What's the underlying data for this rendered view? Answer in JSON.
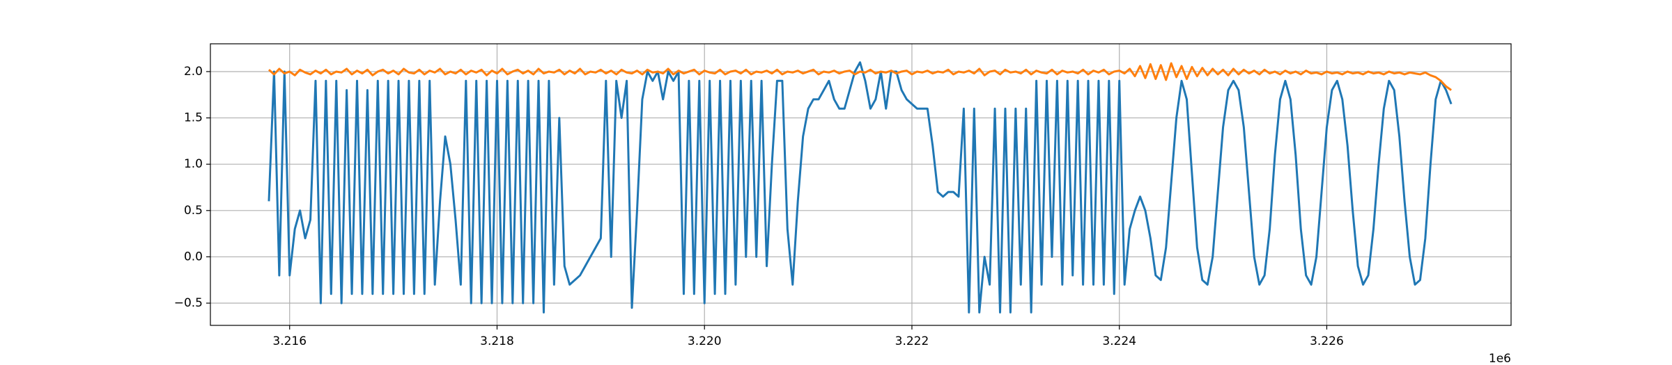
{
  "chart_data": {
    "type": "line",
    "x": [
      3215800,
      3215850,
      3215900,
      3215950,
      3216000,
      3216050,
      3216100,
      3216150,
      3216200,
      3216250,
      3216300,
      3216350,
      3216400,
      3216450,
      3216500,
      3216550,
      3216600,
      3216650,
      3216700,
      3216750,
      3216800,
      3216850,
      3216900,
      3216950,
      3217000,
      3217050,
      3217100,
      3217150,
      3217200,
      3217250,
      3217300,
      3217350,
      3217400,
      3217450,
      3217500,
      3217550,
      3217600,
      3217650,
      3217700,
      3217750,
      3217800,
      3217850,
      3217900,
      3217950,
      3218000,
      3218050,
      3218100,
      3218150,
      3218200,
      3218250,
      3218300,
      3218350,
      3218400,
      3218450,
      3218500,
      3218550,
      3218600,
      3218650,
      3218700,
      3218750,
      3218800,
      3218850,
      3218900,
      3218950,
      3219000,
      3219050,
      3219100,
      3219150,
      3219200,
      3219250,
      3219300,
      3219350,
      3219400,
      3219450,
      3219500,
      3219550,
      3219600,
      3219650,
      3219700,
      3219750,
      3219800,
      3219850,
      3219900,
      3219950,
      3220000,
      3220050,
      3220100,
      3220150,
      3220200,
      3220250,
      3220300,
      3220350,
      3220400,
      3220450,
      3220500,
      3220550,
      3220600,
      3220650,
      3220700,
      3220750,
      3220800,
      3220850,
      3220900,
      3220950,
      3221000,
      3221050,
      3221100,
      3221150,
      3221200,
      3221250,
      3221300,
      3221350,
      3221400,
      3221450,
      3221500,
      3221550,
      3221600,
      3221650,
      3221700,
      3221750,
      3221800,
      3221850,
      3221900,
      3221950,
      3222000,
      3222050,
      3222100,
      3222150,
      3222200,
      3222250,
      3222300,
      3222350,
      3222400,
      3222450,
      3222500,
      3222550,
      3222600,
      3222650,
      3222700,
      3222750,
      3222800,
      3222850,
      3222900,
      3222950,
      3223000,
      3223050,
      3223100,
      3223150,
      3223200,
      3223250,
      3223300,
      3223350,
      3223400,
      3223450,
      3223500,
      3223550,
      3223600,
      3223650,
      3223700,
      3223750,
      3223800,
      3223850,
      3223900,
      3223950,
      3224000,
      3224050,
      3224100,
      3224150,
      3224200,
      3224250,
      3224300,
      3224350,
      3224400,
      3224450,
      3224500,
      3224550,
      3224600,
      3224650,
      3224700,
      3224750,
      3224800,
      3224850,
      3224900,
      3224950,
      3225000,
      3225050,
      3225100,
      3225150,
      3225200,
      3225250,
      3225300,
      3225350,
      3225400,
      3225450,
      3225500,
      3225550,
      3225600,
      3225650,
      3225700,
      3225750,
      3225800,
      3225850,
      3225900,
      3225950,
      3226000,
      3226050,
      3226100,
      3226150,
      3226200,
      3226250,
      3226300,
      3226350,
      3226400,
      3226450,
      3226500,
      3226550,
      3226600,
      3226650,
      3226700,
      3226750,
      3226800,
      3226850,
      3226900,
      3226950,
      3227000,
      3227050,
      3227100,
      3227150,
      3227200
    ],
    "series": [
      {
        "color": "#1f77b4",
        "values": [
          0.6,
          2.0,
          -0.2,
          2.0,
          -0.2,
          0.3,
          0.5,
          0.2,
          0.4,
          1.9,
          -0.5,
          1.9,
          -0.4,
          1.9,
          -0.5,
          1.8,
          -0.4,
          1.9,
          -0.4,
          1.8,
          -0.4,
          1.9,
          -0.4,
          1.9,
          -0.4,
          1.9,
          -0.4,
          1.9,
          -0.4,
          1.9,
          -0.4,
          1.9,
          -0.3,
          0.6,
          1.3,
          1.0,
          0.4,
          -0.3,
          1.9,
          -0.5,
          1.9,
          -0.5,
          1.9,
          -0.5,
          1.9,
          -0.5,
          1.9,
          -0.5,
          1.9,
          -0.5,
          1.9,
          -0.5,
          1.9,
          -0.6,
          1.9,
          -0.3,
          1.5,
          -0.1,
          -0.3,
          -0.25,
          -0.2,
          -0.1,
          0.0,
          0.1,
          0.2,
          1.9,
          0.0,
          1.9,
          1.5,
          1.9,
          -0.55,
          0.5,
          1.7,
          2.0,
          1.9,
          2.0,
          1.7,
          2.0,
          1.9,
          2.0,
          -0.4,
          1.9,
          -0.4,
          1.9,
          -0.5,
          1.9,
          -0.4,
          1.9,
          -0.4,
          1.9,
          -0.3,
          1.9,
          0.0,
          1.9,
          0.0,
          1.9,
          -0.1,
          1.0,
          1.9,
          1.9,
          0.3,
          -0.3,
          0.6,
          1.3,
          1.6,
          1.7,
          1.7,
          1.8,
          1.9,
          1.7,
          1.6,
          1.6,
          1.8,
          2.0,
          2.1,
          1.9,
          1.6,
          1.7,
          2.0,
          1.6,
          2.0,
          2.0,
          1.8,
          1.7,
          1.65,
          1.6,
          1.6,
          1.6,
          1.2,
          0.7,
          0.65,
          0.7,
          0.7,
          0.65,
          1.6,
          -0.6,
          1.6,
          -0.6,
          0.0,
          -0.3,
          1.6,
          -0.6,
          1.6,
          -0.6,
          1.6,
          -0.3,
          1.6,
          -0.6,
          1.9,
          -0.3,
          1.9,
          0.0,
          1.9,
          -0.3,
          1.9,
          -0.2,
          1.9,
          -0.3,
          1.9,
          -0.3,
          1.9,
          -0.3,
          1.9,
          -0.4,
          1.9,
          -0.3,
          0.3,
          0.5,
          0.65,
          0.5,
          0.2,
          -0.2,
          -0.25,
          0.1,
          0.8,
          1.5,
          1.9,
          1.7,
          0.9,
          0.1,
          -0.25,
          -0.3,
          0.0,
          0.7,
          1.4,
          1.8,
          1.9,
          1.8,
          1.4,
          0.7,
          0.0,
          -0.3,
          -0.2,
          0.3,
          1.1,
          1.7,
          1.9,
          1.7,
          1.1,
          0.3,
          -0.2,
          -0.3,
          0.0,
          0.7,
          1.4,
          1.8,
          1.9,
          1.7,
          1.2,
          0.5,
          -0.1,
          -0.3,
          -0.2,
          0.3,
          1.0,
          1.6,
          1.9,
          1.8,
          1.3,
          0.6,
          0.0,
          -0.3,
          -0.25,
          0.2,
          1.0,
          1.7,
          1.9,
          1.8,
          1.65
        ]
      },
      {
        "color": "#ff7f0e",
        "values": [
          2.02,
          1.97,
          2.03,
          1.98,
          2.0,
          1.96,
          2.02,
          1.99,
          1.97,
          2.01,
          1.98,
          2.02,
          1.97,
          2.0,
          1.99,
          2.03,
          1.97,
          2.01,
          1.98,
          2.02,
          1.96,
          2.0,
          2.02,
          1.98,
          2.01,
          1.97,
          2.03,
          1.99,
          1.98,
          2.02,
          1.97,
          2.01,
          1.99,
          2.03,
          1.97,
          2.0,
          1.98,
          2.02,
          1.97,
          2.01,
          1.99,
          2.02,
          1.96,
          2.01,
          1.98,
          2.03,
          1.97,
          2.0,
          2.02,
          1.98,
          2.01,
          1.97,
          2.03,
          1.98,
          2.0,
          1.99,
          2.02,
          1.97,
          2.01,
          1.98,
          2.03,
          1.97,
          2.0,
          1.99,
          2.02,
          1.98,
          2.01,
          1.97,
          2.02,
          1.99,
          1.98,
          2.01,
          1.97,
          2.02,
          1.99,
          2.0,
          1.98,
          2.03,
          1.97,
          2.01,
          1.98,
          2.0,
          2.02,
          1.97,
          2.01,
          1.99,
          1.98,
          2.02,
          1.97,
          2.0,
          2.01,
          1.98,
          2.02,
          1.97,
          2.0,
          1.99,
          2.01,
          1.98,
          2.02,
          1.97,
          2.0,
          1.99,
          2.01,
          1.98,
          2.0,
          2.02,
          1.97,
          2.0,
          1.99,
          2.01,
          1.98,
          2.0,
          2.01,
          1.97,
          2.0,
          1.99,
          2.02,
          1.98,
          2.0,
          1.99,
          2.01,
          1.98,
          2.0,
          2.01,
          1.97,
          2.0,
          1.99,
          2.01,
          1.98,
          2.0,
          1.99,
          2.02,
          1.97,
          2.0,
          1.99,
          2.01,
          1.98,
          2.03,
          1.96,
          2.0,
          2.01,
          1.97,
          2.02,
          1.99,
          2.0,
          1.98,
          2.02,
          1.97,
          2.01,
          1.99,
          1.98,
          2.02,
          1.97,
          2.01,
          1.99,
          2.0,
          1.98,
          2.02,
          1.97,
          2.01,
          1.99,
          2.02,
          1.97,
          2.0,
          2.01,
          1.98,
          2.03,
          1.95,
          2.06,
          1.93,
          2.08,
          1.92,
          2.07,
          1.91,
          2.09,
          1.94,
          2.06,
          1.92,
          2.05,
          1.95,
          2.04,
          1.96,
          2.03,
          1.97,
          2.02,
          1.96,
          2.03,
          1.97,
          2.02,
          1.98,
          2.01,
          1.97,
          2.02,
          1.98,
          2.0,
          1.97,
          2.01,
          1.98,
          2.0,
          1.97,
          2.01,
          1.98,
          1.99,
          1.97,
          2.0,
          1.98,
          1.99,
          1.97,
          2.0,
          1.98,
          1.99,
          1.97,
          2.0,
          1.98,
          1.99,
          1.97,
          2.0,
          1.98,
          1.99,
          1.97,
          1.99,
          1.98,
          1.97,
          1.99,
          1.96,
          1.94,
          1.9,
          1.84,
          1.8
        ]
      }
    ],
    "xlim": [
      3215236,
      3227777
    ],
    "xticks": [
      {
        "value": 3216000,
        "label": "3.216"
      },
      {
        "value": 3218000,
        "label": "3.218"
      },
      {
        "value": 3220000,
        "label": "3.220"
      },
      {
        "value": 3222000,
        "label": "3.222"
      },
      {
        "value": 3224000,
        "label": "3.224"
      },
      {
        "value": 3226000,
        "label": "3.226"
      }
    ],
    "x_offset_label": "1e6",
    "ylim": [
      -0.74,
      2.3
    ],
    "yticks": [
      {
        "value": -0.5,
        "label": "−0.5"
      },
      {
        "value": 0,
        "label": "0.0"
      },
      0.5,
      {
        "value": 1,
        "label": "1.0"
      },
      1.5,
      {
        "value": 2,
        "label": "2.0"
      }
    ],
    "grid": true
  }
}
